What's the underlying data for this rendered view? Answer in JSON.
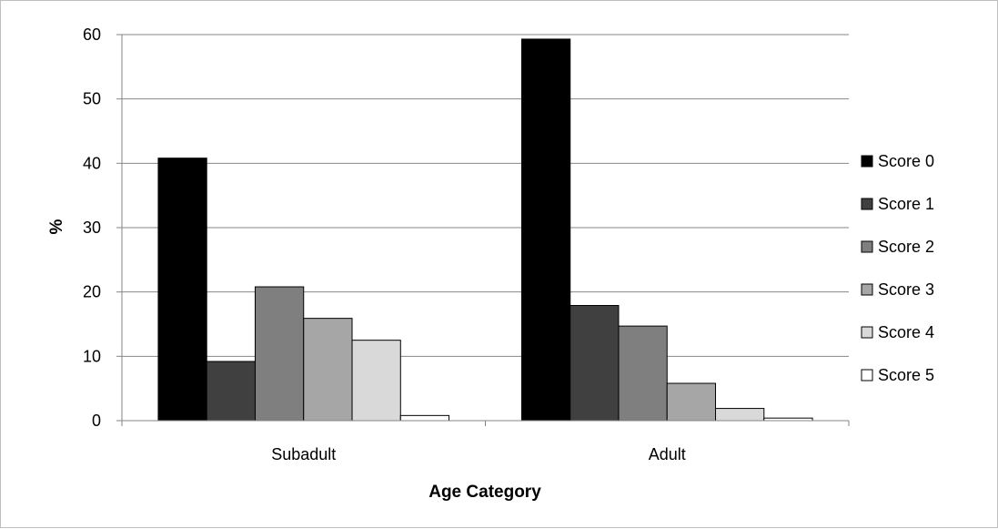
{
  "chart_data": {
    "type": "bar",
    "title": "",
    "xlabel": "Age Category",
    "ylabel": "%",
    "ylim": [
      0,
      60
    ],
    "yticks": [
      0,
      10,
      20,
      30,
      40,
      50,
      60
    ],
    "grid": true,
    "legend_position": "right",
    "categories": [
      "Subadult",
      "Adult"
    ],
    "series": [
      {
        "name": "Score 0",
        "color": "#000000",
        "values": [
          40.8,
          59.3
        ]
      },
      {
        "name": "Score 1",
        "color": "#404040",
        "values": [
          9.2,
          17.9
        ]
      },
      {
        "name": "Score 2",
        "color": "#7f7f7f",
        "values": [
          20.8,
          14.7
        ]
      },
      {
        "name": "Score 3",
        "color": "#a6a6a6",
        "values": [
          15.9,
          5.8
        ]
      },
      {
        "name": "Score 4",
        "color": "#d9d9d9",
        "values": [
          12.5,
          1.9
        ]
      },
      {
        "name": "Score 5",
        "color": "#ffffff",
        "values": [
          0.8,
          0.4
        ]
      }
    ]
  }
}
